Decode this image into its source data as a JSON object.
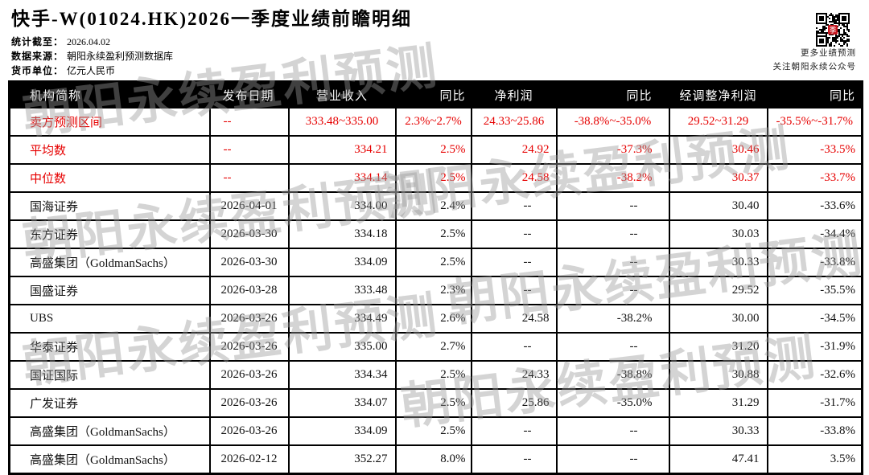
{
  "page": {
    "title": "快手-W(01024.HK)2026一季度业绩前瞻明细"
  },
  "meta": {
    "stat_deadline_label": "统计截至：",
    "stat_deadline_value": "2026.04.02",
    "source_label": "数据来源：",
    "source_value": "朝阳永续盈利预测数据库",
    "currency_label": "货币单位：",
    "currency_value": "亿元人民币"
  },
  "qr": {
    "caption_line1": "更多业绩预测",
    "caption_line2": "关注朝阳永续公众号"
  },
  "watermark": {
    "text": "朝阳永续盈利预测"
  },
  "colors": {
    "highlight_red": "#e60000",
    "header_bg": "#000000",
    "header_text": "#ffffff"
  },
  "table": {
    "columns": [
      "机构简称",
      "发布日期",
      "营业收入",
      "同比",
      "净利润",
      "同比",
      "经调整净利润",
      "同比"
    ],
    "rows": [
      {
        "highlight": true,
        "range": true,
        "cells": [
          "卖方预测区间",
          "--",
          "333.48~335.00",
          "2.3%~2.7%",
          "24.33~25.86",
          "-38.8%~-35.0%",
          "29.52~31.29",
          "-35.5%~-31.7%"
        ]
      },
      {
        "highlight": true,
        "range": false,
        "cells": [
          "平均数",
          "--",
          "334.21",
          "2.5%",
          "24.92",
          "-37.3%",
          "30.46",
          "-33.5%"
        ]
      },
      {
        "highlight": true,
        "range": false,
        "cells": [
          "中位数",
          "--",
          "334.14",
          "2.5%",
          "24.58",
          "-38.2%",
          "30.37",
          "-33.7%"
        ]
      },
      {
        "highlight": false,
        "range": false,
        "cells": [
          "国海证券",
          "2026-04-01",
          "334.00",
          "2.4%",
          "--",
          "--",
          "30.40",
          "-33.6%"
        ]
      },
      {
        "highlight": false,
        "range": false,
        "cells": [
          "东方证券",
          "2026-03-30",
          "334.18",
          "2.5%",
          "--",
          "--",
          "30.03",
          "-34.4%"
        ]
      },
      {
        "highlight": false,
        "range": false,
        "cells": [
          "高盛集团（GoldmanSachs）",
          "2026-03-30",
          "334.09",
          "2.5%",
          "--",
          "--",
          "30.33",
          "-33.8%"
        ]
      },
      {
        "highlight": false,
        "range": false,
        "cells": [
          "国盛证券",
          "2026-03-28",
          "333.48",
          "2.3%",
          "--",
          "--",
          "29.52",
          "-35.5%"
        ]
      },
      {
        "highlight": false,
        "range": false,
        "cells": [
          "UBS",
          "2026-03-26",
          "334.49",
          "2.6%",
          "24.58",
          "-38.2%",
          "30.00",
          "-34.5%"
        ]
      },
      {
        "highlight": false,
        "range": false,
        "cells": [
          "华泰证券",
          "2026-03-26",
          "335.00",
          "2.7%",
          "--",
          "--",
          "31.20",
          "-31.9%"
        ]
      },
      {
        "highlight": false,
        "range": false,
        "cells": [
          "国证国际",
          "2026-03-26",
          "334.34",
          "2.5%",
          "24.33",
          "-38.8%",
          "30.88",
          "-32.6%"
        ]
      },
      {
        "highlight": false,
        "range": false,
        "cells": [
          "广发证券",
          "2026-03-26",
          "334.07",
          "2.5%",
          "25.86",
          "-35.0%",
          "31.29",
          "-31.7%"
        ]
      },
      {
        "highlight": false,
        "range": false,
        "cells": [
          "高盛集团（GoldmanSachs）",
          "2026-03-26",
          "334.09",
          "2.5%",
          "--",
          "--",
          "30.33",
          "-33.8%"
        ]
      },
      {
        "highlight": false,
        "range": false,
        "cells": [
          "高盛集团（GoldmanSachs）",
          "2026-02-12",
          "352.27",
          "8.0%",
          "--",
          "--",
          "47.41",
          "3.5%"
        ]
      }
    ]
  }
}
